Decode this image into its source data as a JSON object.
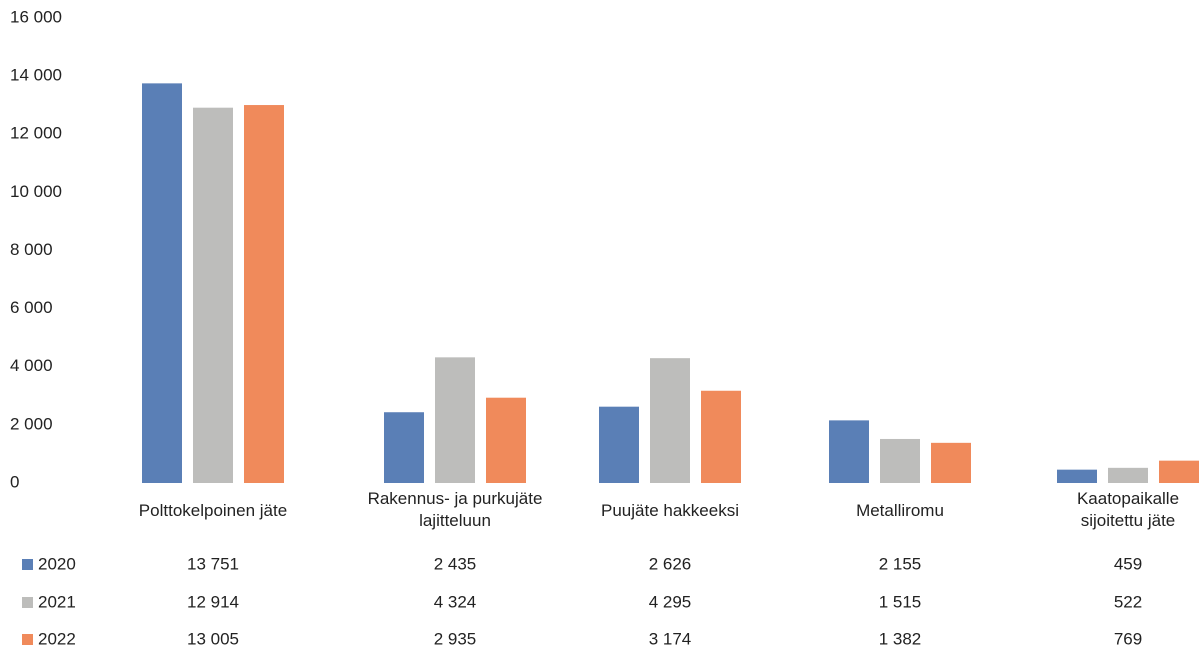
{
  "chart_data": {
    "type": "bar",
    "categories": [
      "Polttokelpoinen jäte",
      "Rakennus- ja purkujäte lajitteluun",
      "Puujäte hakkeeksi",
      "Metalliromu",
      "Kaatopaikalle sijoitettu jäte"
    ],
    "series": [
      {
        "name": "2020",
        "color": "#5a7fb6",
        "values": [
          13751,
          2435,
          2626,
          2155,
          459
        ],
        "value_labels": [
          "13 751",
          "2 435",
          "2 626",
          "2 155",
          "459"
        ]
      },
      {
        "name": "2021",
        "color": "#bdbdbb",
        "values": [
          12914,
          4324,
          4295,
          1515,
          522
        ],
        "value_labels": [
          "12 914",
          "4 324",
          "4 295",
          "1 515",
          "522"
        ]
      },
      {
        "name": "2022",
        "color": "#f08a5b",
        "values": [
          13005,
          2935,
          3174,
          1382,
          769
        ],
        "value_labels": [
          "13 005",
          "2 935",
          "3 174",
          "1 382",
          "769"
        ]
      }
    ],
    "ylim": [
      0,
      16000
    ],
    "yticks": [
      0,
      {
        "value": 2000,
        "label": "2 000"
      },
      {
        "value": 4000,
        "label": "4 000"
      },
      {
        "value": 6000,
        "label": "6 000"
      },
      {
        "value": 8000,
        "label": "8 000"
      },
      {
        "value": 10000,
        "label": "10 000"
      },
      {
        "value": 12000,
        "label": "12 000"
      },
      {
        "value": 14000,
        "label": "14 000"
      },
      {
        "value": 16000,
        "label": "16 000"
      }
    ],
    "grid": false
  }
}
